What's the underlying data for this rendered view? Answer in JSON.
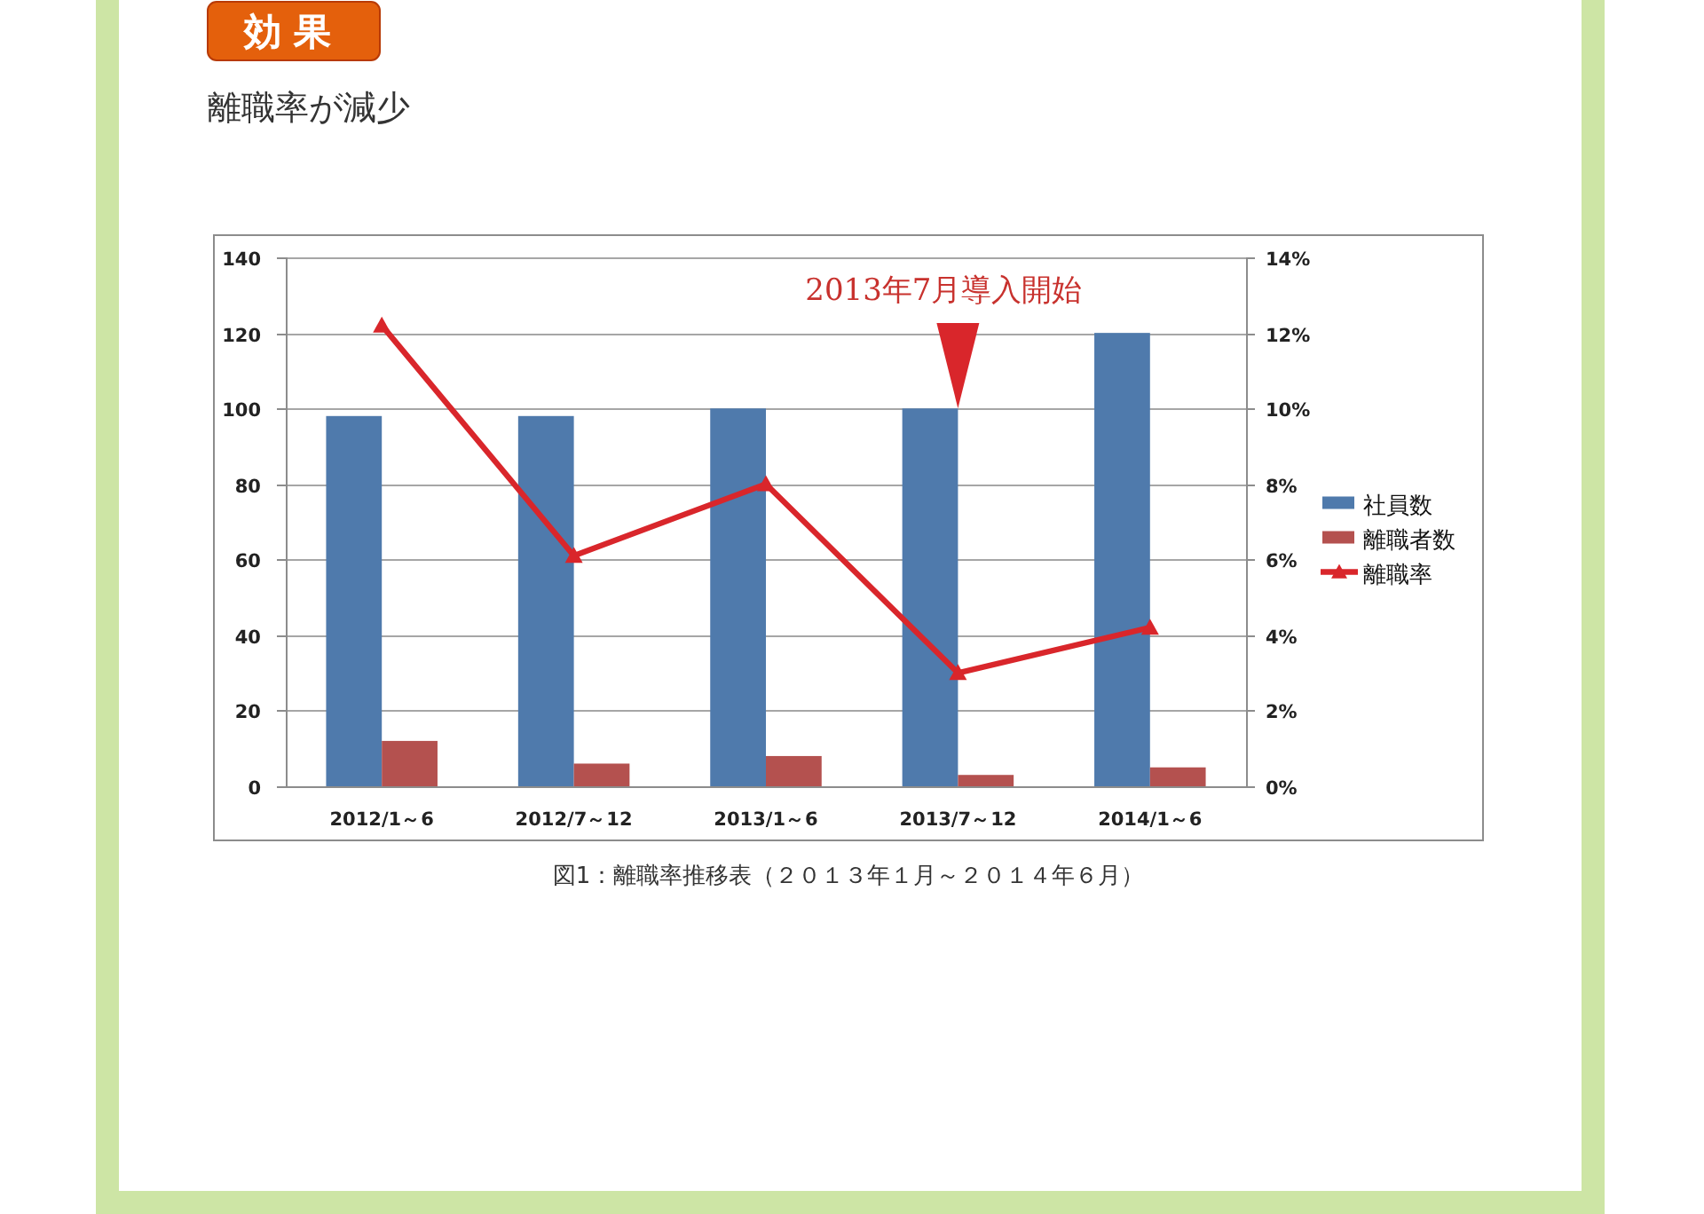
{
  "chart_data": {
    "type": "bar",
    "title": "効果",
    "subtitle": "離職率が減少",
    "categories": [
      "2012/1～6",
      "2012/7～12",
      "2013/1～6",
      "2013/7～12",
      "2014/1～6"
    ],
    "series": [
      {
        "name": "社員数",
        "color": "#4f7aac",
        "values": [
          98,
          98,
          100,
          100,
          120
        ]
      },
      {
        "name": "離職者数",
        "color": "#b4514f",
        "values": [
          12,
          6,
          8,
          3,
          5
        ]
      },
      {
        "name": "離職率",
        "type": "line",
        "axis": "y2",
        "color": "#d9262b",
        "marker": "triangle",
        "values": [
          12.2,
          6.1,
          8,
          3,
          4.2
        ]
      }
    ],
    "ylim": [
      0,
      140
    ],
    "yticks": [
      0,
      20,
      40,
      60,
      80,
      100,
      120,
      140
    ],
    "y2lim": [
      0,
      14
    ],
    "y2ticks": [
      {
        "value": 0,
        "label": "0%"
      },
      {
        "value": 2,
        "label": "2%"
      },
      {
        "value": 4,
        "label": "4%"
      },
      {
        "value": 6,
        "label": "6%"
      },
      {
        "value": 8,
        "label": "8%"
      },
      {
        "value": 10,
        "label": "10%"
      },
      {
        "value": 12,
        "label": "12%"
      },
      {
        "value": 14,
        "label": "14%"
      }
    ],
    "grid": "y",
    "legend": "right",
    "annotations": [
      {
        "text": "2013年7月導入開始",
        "x": "2013/7～12",
        "y": 100
      },
      "図1：離職率推移表（２０１３年１月～２０１４年６月）"
    ]
  }
}
